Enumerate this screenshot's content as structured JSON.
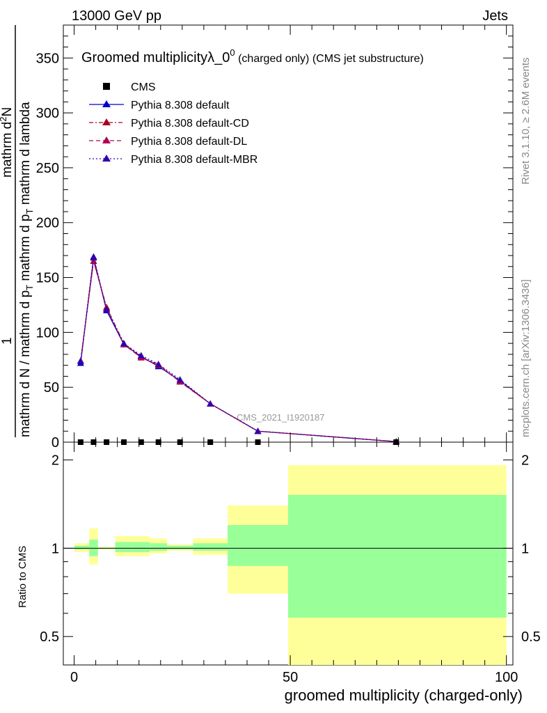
{
  "header": {
    "left": "13000 GeV pp",
    "right": "Jets"
  },
  "side_labels": {
    "rivet": "Rivet 3.1.10, ≥ 2.6M events",
    "mcplots": "mcplots.cern.ch [arXiv:1306.3436]"
  },
  "main_title": {
    "text": "Groomed multiplicityλ_0",
    "superscript": "0",
    "suffix": " (charged only) (CMS jet substructure)"
  },
  "ylabel_main": {
    "numerator_one": "1",
    "numerator_part1": "mathrm d",
    "numerator_sup": "2",
    "numerator_part2": "N",
    "denominator_line1": "mathrm d N / mathrm d p",
    "denominator_sub1": "T",
    "denominator_line2": " mathrm d p",
    "denominator_sub2": "T",
    "denominator_line3": " mathrm d lambda"
  },
  "ylabel_ratio": "Ratio to CMS",
  "xlabel": "groomed multiplicity (charged-only)",
  "watermark": "CMS_2021_I1920187",
  "legend": [
    {
      "label": "CMS",
      "color": "#000000",
      "style": "marker"
    },
    {
      "label": "Pythia 8.308 default",
      "color": "#0000cc",
      "style": "solid"
    },
    {
      "label": "Pythia 8.308 default-CD",
      "color": "#aa0022",
      "style": "dashdot"
    },
    {
      "label": "Pythia 8.308 default-DL",
      "color": "#b00050",
      "style": "dashed"
    },
    {
      "label": "Pythia 8.308 default-MBR",
      "color": "#3300aa",
      "style": "dotted"
    }
  ],
  "chart_data": {
    "type": "line",
    "xlim": [
      -2.5,
      101.5
    ],
    "ylim_main": [
      0,
      380
    ],
    "main_yticks": [
      0,
      50,
      100,
      150,
      200,
      250,
      300,
      350
    ],
    "ratio_yticks": [
      0.5,
      1,
      2
    ],
    "ratio_ylim": [
      0.4,
      2.3
    ],
    "xticks": [
      0,
      50,
      100
    ],
    "bin_edges": [
      0,
      3.5,
      5.5,
      9.5,
      13.5,
      17.5,
      21.5,
      27.5,
      35.5,
      49.5,
      100
    ],
    "x": [
      1.5,
      4.5,
      7.5,
      11.5,
      15.5,
      19.5,
      24.5,
      31.5,
      42.5,
      74.5
    ],
    "cms": [
      0,
      0,
      0,
      0,
      0,
      0,
      0,
      0,
      0,
      0
    ],
    "series": [
      {
        "name": "Pythia 8.308 default",
        "color": "#0000cc",
        "values": [
          72,
          168,
          120,
          89,
          78,
          69,
          56,
          35,
          10,
          0.5
        ]
      },
      {
        "name": "Pythia 8.308 default-CD",
        "color": "#aa0022",
        "values": [
          74,
          165,
          123,
          90,
          77,
          71,
          55,
          35,
          10,
          0.5
        ]
      },
      {
        "name": "Pythia 8.308 default-DL",
        "color": "#b00050",
        "values": [
          74,
          165,
          122,
          89,
          77,
          70,
          55,
          35,
          10,
          0.5
        ]
      },
      {
        "name": "Pythia 8.308 default-MBR",
        "color": "#3300aa",
        "values": [
          74,
          169,
          121,
          90,
          79,
          71,
          57,
          35,
          10,
          0.5
        ]
      }
    ],
    "ratio_bands": {
      "yellow_low": [
        0.97,
        0.88,
        0.99,
        0.94,
        0.94,
        0.96,
        0.98,
        0.95,
        0.7,
        0.3
      ],
      "yellow_high": [
        1.04,
        1.17,
        1.01,
        1.1,
        1.1,
        1.08,
        1.03,
        1.08,
        1.4,
        1.92
      ],
      "green_low": [
        0.99,
        0.94,
        0.995,
        0.97,
        0.97,
        0.98,
        0.99,
        0.98,
        0.87,
        0.58
      ],
      "green_high": [
        1.02,
        1.07,
        1.005,
        1.05,
        1.05,
        1.04,
        1.02,
        1.04,
        1.2,
        1.52
      ]
    },
    "colors": {
      "yellow": "#ffff99",
      "green": "#99ff99"
    }
  }
}
